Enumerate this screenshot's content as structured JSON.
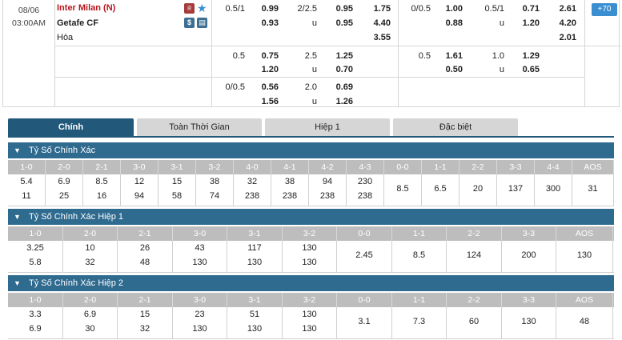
{
  "match": {
    "date": "08/06",
    "time": "03:00AM",
    "home_team": "Inter Milan (N)",
    "away_team": "Getafe CF",
    "draw_label": "Hòa",
    "more_markets": "+70",
    "row1": {
      "ft_hdp_line": "0.5/1",
      "ft_hdp_home": "0.99",
      "ft_hdp_away": "0.93",
      "ft_ou_line": "2/2.5",
      "ft_ou_u": "u",
      "ft_ou_over": "0.95",
      "ft_ou_under": "0.95",
      "ft_1x2_home": "1.75",
      "ft_1x2_away": "4.40",
      "ft_1x2_draw": "3.55",
      "h1_hdp_line": "0/0.5",
      "h1_hdp_home": "1.00",
      "h1_hdp_away": "0.88",
      "h1_ou_line": "0.5/1",
      "h1_ou_u": "u",
      "h1_ou_over": "0.71",
      "h1_ou_under": "1.20",
      "h1_1x2_home": "2.61",
      "h1_1x2_away": "4.20",
      "h1_1x2_draw": "2.01"
    },
    "row2": {
      "ft_hdp_line": "0.5",
      "ft_hdp_home": "0.75",
      "ft_hdp_away": "1.20",
      "ft_ou_line": "2.5",
      "ft_ou_u": "u",
      "ft_ou_over": "1.25",
      "ft_ou_under": "0.70",
      "h1_hdp_line": "0.5",
      "h1_hdp_home": "1.61",
      "h1_hdp_away": "0.50",
      "h1_ou_line": "1.0",
      "h1_ou_u": "u",
      "h1_ou_over": "1.29",
      "h1_ou_under": "0.65"
    },
    "row3": {
      "ft_hdp_line": "0/0.5",
      "ft_hdp_home": "0.56",
      "ft_hdp_away": "1.56",
      "ft_ou_line": "2.0",
      "ft_ou_u": "u",
      "ft_ou_over": "0.69",
      "ft_ou_under": "1.26"
    }
  },
  "tabs": [
    "Chính",
    "Toàn Thời Gian",
    "Hiệp 1",
    "Đặc biệt"
  ],
  "sections": [
    {
      "title": "Tỷ Số Chính Xác",
      "headers": [
        "1-0",
        "2-0",
        "2-1",
        "3-0",
        "3-1",
        "3-2",
        "4-0",
        "4-1",
        "4-2",
        "4-3",
        "0-0",
        "1-1",
        "2-2",
        "3-3",
        "4-4",
        "AOS"
      ],
      "top": [
        "5.4",
        "6.9",
        "8.5",
        "12",
        "15",
        "38",
        "32",
        "38",
        "94",
        "230",
        "",
        "",
        "",
        "",
        "",
        ""
      ],
      "bottom": [
        "11",
        "25",
        "16",
        "94",
        "58",
        "74",
        "238",
        "238",
        "238",
        "238",
        "",
        "",
        "",
        "",
        "",
        ""
      ],
      "single": [
        "",
        "",
        "",
        "",
        "",
        "",
        "",
        "",
        "",
        "",
        "8.5",
        "6.5",
        "20",
        "137",
        "300",
        "31"
      ]
    },
    {
      "title": "Tỷ Số Chính Xác Hiệp 1",
      "headers": [
        "1-0",
        "2-0",
        "2-1",
        "3-0",
        "3-1",
        "3-2",
        "0-0",
        "1-1",
        "2-2",
        "3-3",
        "AOS"
      ],
      "top": [
        "3.25",
        "10",
        "26",
        "43",
        "117",
        "130",
        "",
        "",
        "",
        "",
        ""
      ],
      "bottom": [
        "5.8",
        "32",
        "48",
        "130",
        "130",
        "130",
        "",
        "",
        "",
        "",
        ""
      ],
      "single": [
        "",
        "",
        "",
        "",
        "",
        "",
        "2.45",
        "8.5",
        "124",
        "200",
        "130"
      ]
    },
    {
      "title": "Tỷ Số Chính Xác Hiệp 2",
      "headers": [
        "1-0",
        "2-0",
        "2-1",
        "3-0",
        "3-1",
        "3-2",
        "0-0",
        "1-1",
        "2-2",
        "3-3",
        "AOS"
      ],
      "top": [
        "3.3",
        "6.9",
        "15",
        "23",
        "51",
        "130",
        "",
        "",
        "",
        "",
        ""
      ],
      "bottom": [
        "6.9",
        "30",
        "32",
        "130",
        "130",
        "130",
        "",
        "",
        "",
        "",
        ""
      ],
      "single": [
        "",
        "",
        "",
        "",
        "",
        "",
        "3.1",
        "7.3",
        "60",
        "130",
        "48"
      ]
    }
  ]
}
